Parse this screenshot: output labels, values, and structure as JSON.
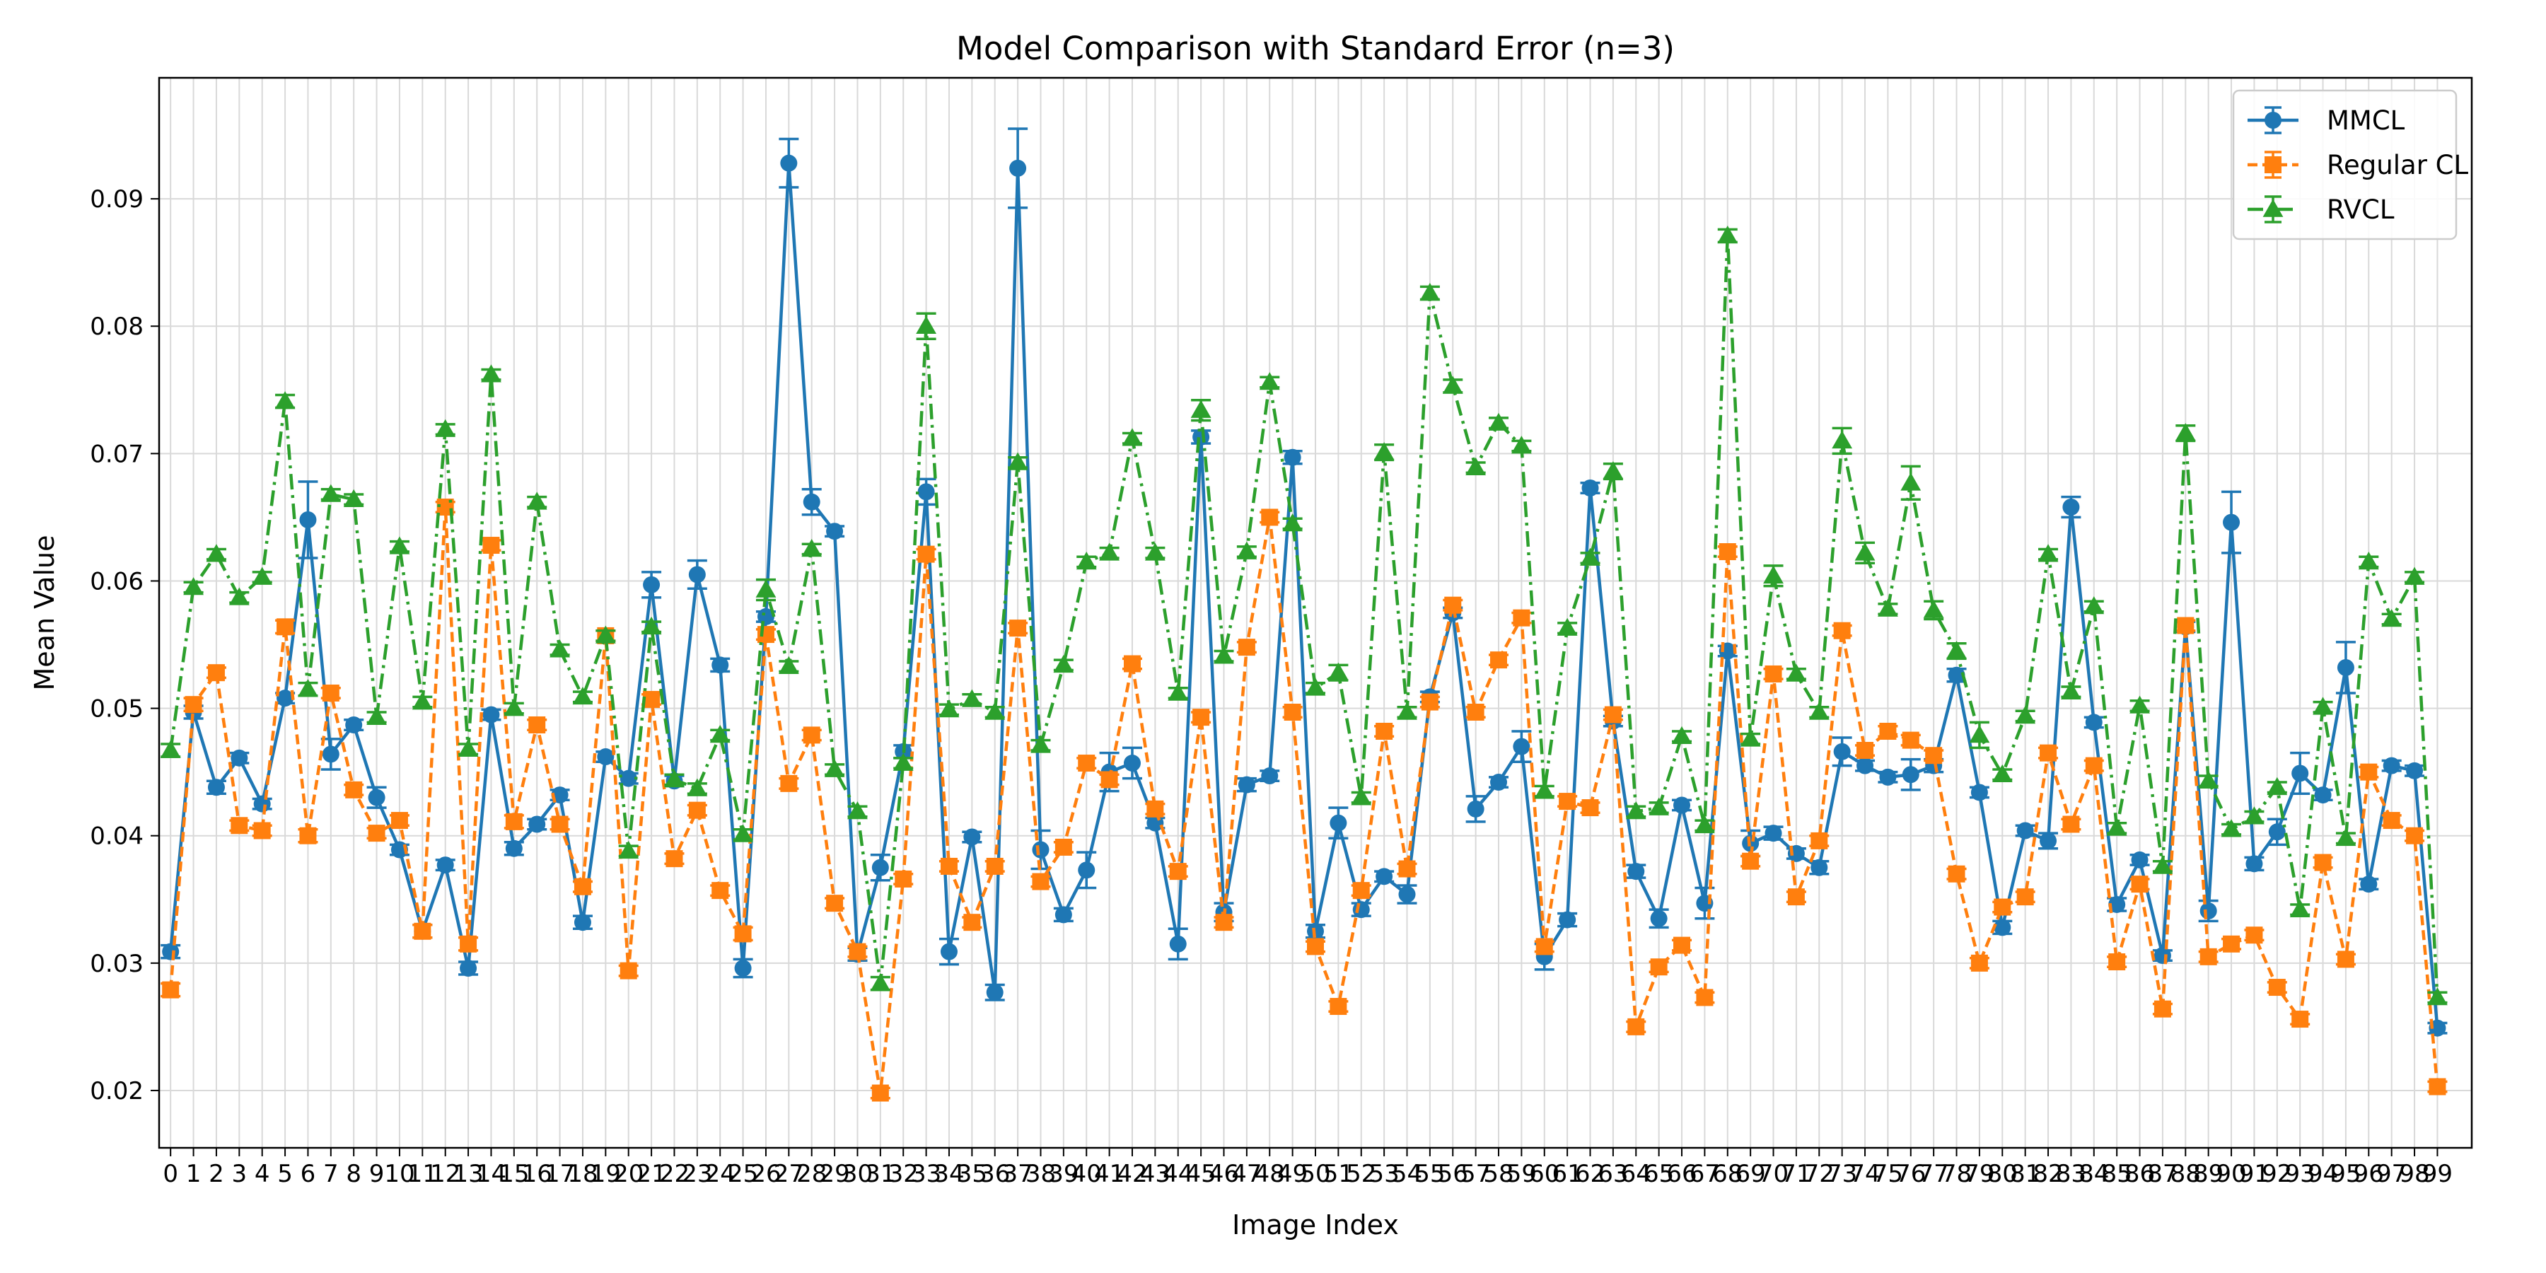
{
  "chart_data": {
    "type": "line",
    "title": "Model Comparison with Standard Error (n=3)",
    "xlabel": "Image Index",
    "ylabel": "Mean Value",
    "xlim": [
      -0.5,
      100.5
    ],
    "ylim": [
      0.0155,
      0.0995
    ],
    "yticks": [
      0.02,
      0.03,
      0.04,
      0.05,
      0.06,
      0.07,
      0.08,
      0.09
    ],
    "ytick_labels": [
      "0.02",
      "0.03",
      "0.04",
      "0.05",
      "0.06",
      "0.07",
      "0.08",
      "0.09"
    ],
    "x": [
      0,
      1,
      2,
      3,
      4,
      5,
      6,
      7,
      8,
      9,
      10,
      11,
      12,
      13,
      14,
      15,
      16,
      17,
      18,
      19,
      20,
      21,
      22,
      23,
      24,
      25,
      26,
      27,
      28,
      29,
      30,
      31,
      32,
      33,
      34,
      35,
      36,
      37,
      38,
      39,
      40,
      41,
      42,
      43,
      44,
      45,
      46,
      47,
      48,
      49,
      50,
      51,
      52,
      53,
      54,
      55,
      56,
      57,
      58,
      59,
      60,
      61,
      62,
      63,
      64,
      65,
      66,
      67,
      68,
      69,
      70,
      71,
      72,
      73,
      74,
      75,
      76,
      77,
      78,
      79,
      80,
      81,
      82,
      83,
      84,
      85,
      86,
      87,
      88,
      89,
      90,
      91,
      92,
      93,
      94,
      95,
      96,
      97,
      98,
      99
    ],
    "xtick_labels": [
      "0",
      "1",
      "2",
      "3",
      "4",
      "5",
      "6",
      "7",
      "8",
      "9",
      "10",
      "11",
      "12",
      "13",
      "14",
      "15",
      "16",
      "17",
      "18",
      "19",
      "20",
      "21",
      "22",
      "23",
      "24",
      "25",
      "26",
      "27",
      "28",
      "29",
      "30",
      "31",
      "32",
      "33",
      "34",
      "35",
      "36",
      "37",
      "38",
      "39",
      "40",
      "41",
      "42",
      "43",
      "44",
      "45",
      "46",
      "47",
      "48",
      "49",
      "50",
      "51",
      "52",
      "53",
      "54",
      "55",
      "56",
      "57",
      "58",
      "59",
      "60",
      "61",
      "62",
      "63",
      "64",
      "65",
      "66",
      "67",
      "68",
      "69",
      "70",
      "71",
      "72",
      "73",
      "74",
      "75",
      "76",
      "77",
      "78",
      "79",
      "80",
      "81",
      "82",
      "83",
      "84",
      "85",
      "86",
      "87",
      "88",
      "89",
      "90",
      "91",
      "92",
      "93",
      "94",
      "95",
      "96",
      "97",
      "98",
      "99"
    ],
    "grid": true,
    "legend_position": "top-right",
    "series": [
      {
        "name": "MMCL",
        "color": "#1f77b4",
        "linestyle": "solid",
        "marker": "circle",
        "values": [
          0.0309,
          0.0497,
          0.0438,
          0.0461,
          0.0425,
          0.0508,
          0.0648,
          0.0464,
          0.0487,
          0.043,
          0.0389,
          0.0325,
          0.0377,
          0.0296,
          0.0495,
          0.039,
          0.0409,
          0.0432,
          0.0332,
          0.0462,
          0.0445,
          0.0597,
          0.0443,
          0.0605,
          0.0534,
          0.0296,
          0.0572,
          0.0928,
          0.0662,
          0.0639,
          0.0307,
          0.0375,
          0.0466,
          0.067,
          0.0309,
          0.0399,
          0.0277,
          0.0924,
          0.0389,
          0.0338,
          0.0373,
          0.045,
          0.0457,
          0.041,
          0.0315,
          0.0713,
          0.034,
          0.044,
          0.0447,
          0.0697,
          0.0325,
          0.041,
          0.0342,
          0.0368,
          0.0354,
          0.0509,
          0.0575,
          0.0421,
          0.0442,
          0.047,
          0.0305,
          0.0334,
          0.0673,
          0.049,
          0.0372,
          0.0335,
          0.0424,
          0.0347,
          0.0545,
          0.0394,
          0.0402,
          0.0386,
          0.0375,
          0.0466,
          0.0455,
          0.0446,
          0.0448,
          0.0455,
          0.0526,
          0.0434,
          0.0328,
          0.0404,
          0.0396,
          0.0658,
          0.0489,
          0.0346,
          0.0381,
          0.0306,
          0.0564,
          0.0341,
          0.0646,
          0.0378,
          0.0403,
          0.0449,
          0.0432,
          0.0532,
          0.0362,
          0.0455,
          0.0451,
          0.0249
        ],
        "errors": [
          0.0005,
          0.0005,
          0.0005,
          0.0004,
          0.0004,
          0.0004,
          0.003,
          0.0012,
          0.0004,
          0.0008,
          0.0004,
          0.0005,
          0.0004,
          0.0005,
          0.0004,
          0.0005,
          0.0004,
          0.0004,
          0.0005,
          0.0004,
          0.0004,
          0.001,
          0.0004,
          0.0011,
          0.0005,
          0.0007,
          0.0004,
          0.0019,
          0.001,
          0.0004,
          0.0005,
          0.001,
          0.0005,
          0.001,
          0.001,
          0.0004,
          0.0006,
          0.0031,
          0.0015,
          0.0005,
          0.0014,
          0.0015,
          0.0012,
          0.0004,
          0.0012,
          0.0005,
          0.0007,
          0.0005,
          0.0004,
          0.0005,
          0.0005,
          0.0012,
          0.0005,
          0.0004,
          0.0007,
          0.0004,
          0.0004,
          0.001,
          0.0004,
          0.0012,
          0.001,
          0.0005,
          0.0004,
          0.0004,
          0.0005,
          0.0007,
          0.0004,
          0.0012,
          0.0004,
          0.001,
          0.0005,
          0.0004,
          0.0005,
          0.0011,
          0.0004,
          0.0004,
          0.0012,
          0.0005,
          0.0005,
          0.0004,
          0.0005,
          0.0004,
          0.0006,
          0.0008,
          0.0004,
          0.0005,
          0.0004,
          0.0004,
          0.0004,
          0.0008,
          0.0024,
          0.0005,
          0.001,
          0.0016,
          0.0004,
          0.002,
          0.0004,
          0.0004,
          0.0004,
          0.0004
        ]
      },
      {
        "name": "Regular CL",
        "color": "#ff7f0e",
        "linestyle": "dashed",
        "marker": "square",
        "values": [
          0.0279,
          0.0503,
          0.0528,
          0.0408,
          0.0404,
          0.0564,
          0.04,
          0.0512,
          0.0436,
          0.0402,
          0.0412,
          0.0325,
          0.0658,
          0.0315,
          0.0628,
          0.0411,
          0.0487,
          0.0409,
          0.036,
          0.0557,
          0.0294,
          0.0507,
          0.0382,
          0.042,
          0.0357,
          0.0323,
          0.0558,
          0.0441,
          0.0479,
          0.0347,
          0.0309,
          0.0198,
          0.0366,
          0.0621,
          0.0376,
          0.0332,
          0.0376,
          0.0563,
          0.0364,
          0.0391,
          0.0457,
          0.0444,
          0.0535,
          0.0421,
          0.0372,
          0.0493,
          0.0332,
          0.0548,
          0.065,
          0.0497,
          0.0313,
          0.0266,
          0.0357,
          0.0482,
          0.0374,
          0.0505,
          0.0581,
          0.0497,
          0.0538,
          0.0571,
          0.0313,
          0.0427,
          0.0422,
          0.0495,
          0.025,
          0.0297,
          0.0314,
          0.0273,
          0.0623,
          0.038,
          0.0527,
          0.0352,
          0.0396,
          0.0561,
          0.0467,
          0.0482,
          0.0475,
          0.0463,
          0.037,
          0.03,
          0.0344,
          0.0352,
          0.0465,
          0.0409,
          0.0455,
          0.0301,
          0.0362,
          0.0264,
          0.0565,
          0.0305,
          0.0315,
          0.0322,
          0.0281,
          0.0256,
          0.0379,
          0.0303,
          0.045,
          0.0412,
          0.04,
          0.0203
        ],
        "errors": [
          0.0005,
          0.0005,
          0.0004,
          0.0004,
          0.0004,
          0.0005,
          0.0005,
          0.0004,
          0.0004,
          0.0004,
          0.0004,
          0.0005,
          0.0004,
          0.0005,
          0.0004,
          0.0005,
          0.0004,
          0.0004,
          0.0004,
          0.0004,
          0.0004,
          0.0004,
          0.0004,
          0.0004,
          0.0004,
          0.0005,
          0.0004,
          0.0004,
          0.0004,
          0.0004,
          0.0004,
          0.0004,
          0.0004,
          0.0004,
          0.0004,
          0.0004,
          0.0004,
          0.0004,
          0.0004,
          0.0004,
          0.0004,
          0.0004,
          0.0004,
          0.0004,
          0.0004,
          0.0004,
          0.0004,
          0.0004,
          0.0004,
          0.0004,
          0.0004,
          0.0004,
          0.0004,
          0.0004,
          0.0004,
          0.0004,
          0.0004,
          0.0004,
          0.0004,
          0.0004,
          0.0004,
          0.0004,
          0.0004,
          0.0004,
          0.0004,
          0.0004,
          0.0004,
          0.0004,
          0.0004,
          0.0004,
          0.0004,
          0.0004,
          0.0004,
          0.0004,
          0.0004,
          0.0004,
          0.0004,
          0.0004,
          0.0004,
          0.0004,
          0.0004,
          0.0004,
          0.0004,
          0.0004,
          0.0004,
          0.0004,
          0.0004,
          0.0004,
          0.0004,
          0.0004,
          0.0004,
          0.0004,
          0.0004,
          0.0004,
          0.0004,
          0.0004,
          0.0004,
          0.0004,
          0.0004,
          0.0004
        ]
      },
      {
        "name": "RVCL",
        "color": "#2ca02c",
        "linestyle": "dashdot",
        "marker": "triangle",
        "values": [
          0.0467,
          0.0595,
          0.0621,
          0.0587,
          0.0603,
          0.0741,
          0.0515,
          0.0668,
          0.0664,
          0.0493,
          0.0627,
          0.0505,
          0.0719,
          0.0468,
          0.0762,
          0.05,
          0.0662,
          0.0546,
          0.0509,
          0.0557,
          0.0388,
          0.0564,
          0.0444,
          0.0437,
          0.0479,
          0.0401,
          0.0593,
          0.0533,
          0.0625,
          0.0452,
          0.0419,
          0.0284,
          0.0457,
          0.08,
          0.0499,
          0.0507,
          0.0497,
          0.0693,
          0.0471,
          0.0534,
          0.0615,
          0.0622,
          0.0712,
          0.0622,
          0.0512,
          0.0734,
          0.0541,
          0.0623,
          0.0756,
          0.0645,
          0.0516,
          0.0528,
          0.043,
          0.0701,
          0.0497,
          0.0826,
          0.0753,
          0.0689,
          0.0724,
          0.0706,
          0.0435,
          0.0563,
          0.0618,
          0.0686,
          0.0419,
          0.0422,
          0.0478,
          0.0408,
          0.0871,
          0.0476,
          0.0604,
          0.0527,
          0.0497,
          0.071,
          0.0622,
          0.0578,
          0.0677,
          0.0577,
          0.0545,
          0.0479,
          0.0448,
          0.0494,
          0.0621,
          0.0513,
          0.058,
          0.0406,
          0.0502,
          0.0376,
          0.0716,
          0.0443,
          0.0405,
          0.0415,
          0.0438,
          0.0342,
          0.0501,
          0.0398,
          0.0615,
          0.057,
          0.0603,
          0.0273
        ],
        "errors": [
          0.0005,
          0.0004,
          0.0004,
          0.0004,
          0.0004,
          0.0005,
          0.0005,
          0.0004,
          0.0004,
          0.0004,
          0.0004,
          0.0004,
          0.0004,
          0.0004,
          0.0004,
          0.0004,
          0.0004,
          0.0004,
          0.0004,
          0.0004,
          0.0004,
          0.0004,
          0.0004,
          0.0004,
          0.0004,
          0.0004,
          0.0008,
          0.0004,
          0.0004,
          0.0004,
          0.0004,
          0.0005,
          0.0004,
          0.001,
          0.0004,
          0.0004,
          0.0004,
          0.0004,
          0.0004,
          0.0004,
          0.0004,
          0.0004,
          0.0004,
          0.0004,
          0.0004,
          0.0008,
          0.0004,
          0.0004,
          0.0004,
          0.0004,
          0.0004,
          0.0006,
          0.0004,
          0.0006,
          0.0004,
          0.0005,
          0.0005,
          0.0004,
          0.0004,
          0.0004,
          0.0004,
          0.0004,
          0.0004,
          0.0006,
          0.0004,
          0.0004,
          0.0004,
          0.0004,
          0.0005,
          0.0004,
          0.0008,
          0.0004,
          0.0004,
          0.001,
          0.0008,
          0.0004,
          0.0013,
          0.0007,
          0.0006,
          0.001,
          0.0004,
          0.0004,
          0.0004,
          0.0004,
          0.0004,
          0.0004,
          0.0004,
          0.0004,
          0.0006,
          0.0004,
          0.0004,
          0.0004,
          0.0004,
          0.0004,
          0.0004,
          0.0004,
          0.0004,
          0.0004,
          0.0004,
          0.0004
        ]
      }
    ]
  }
}
